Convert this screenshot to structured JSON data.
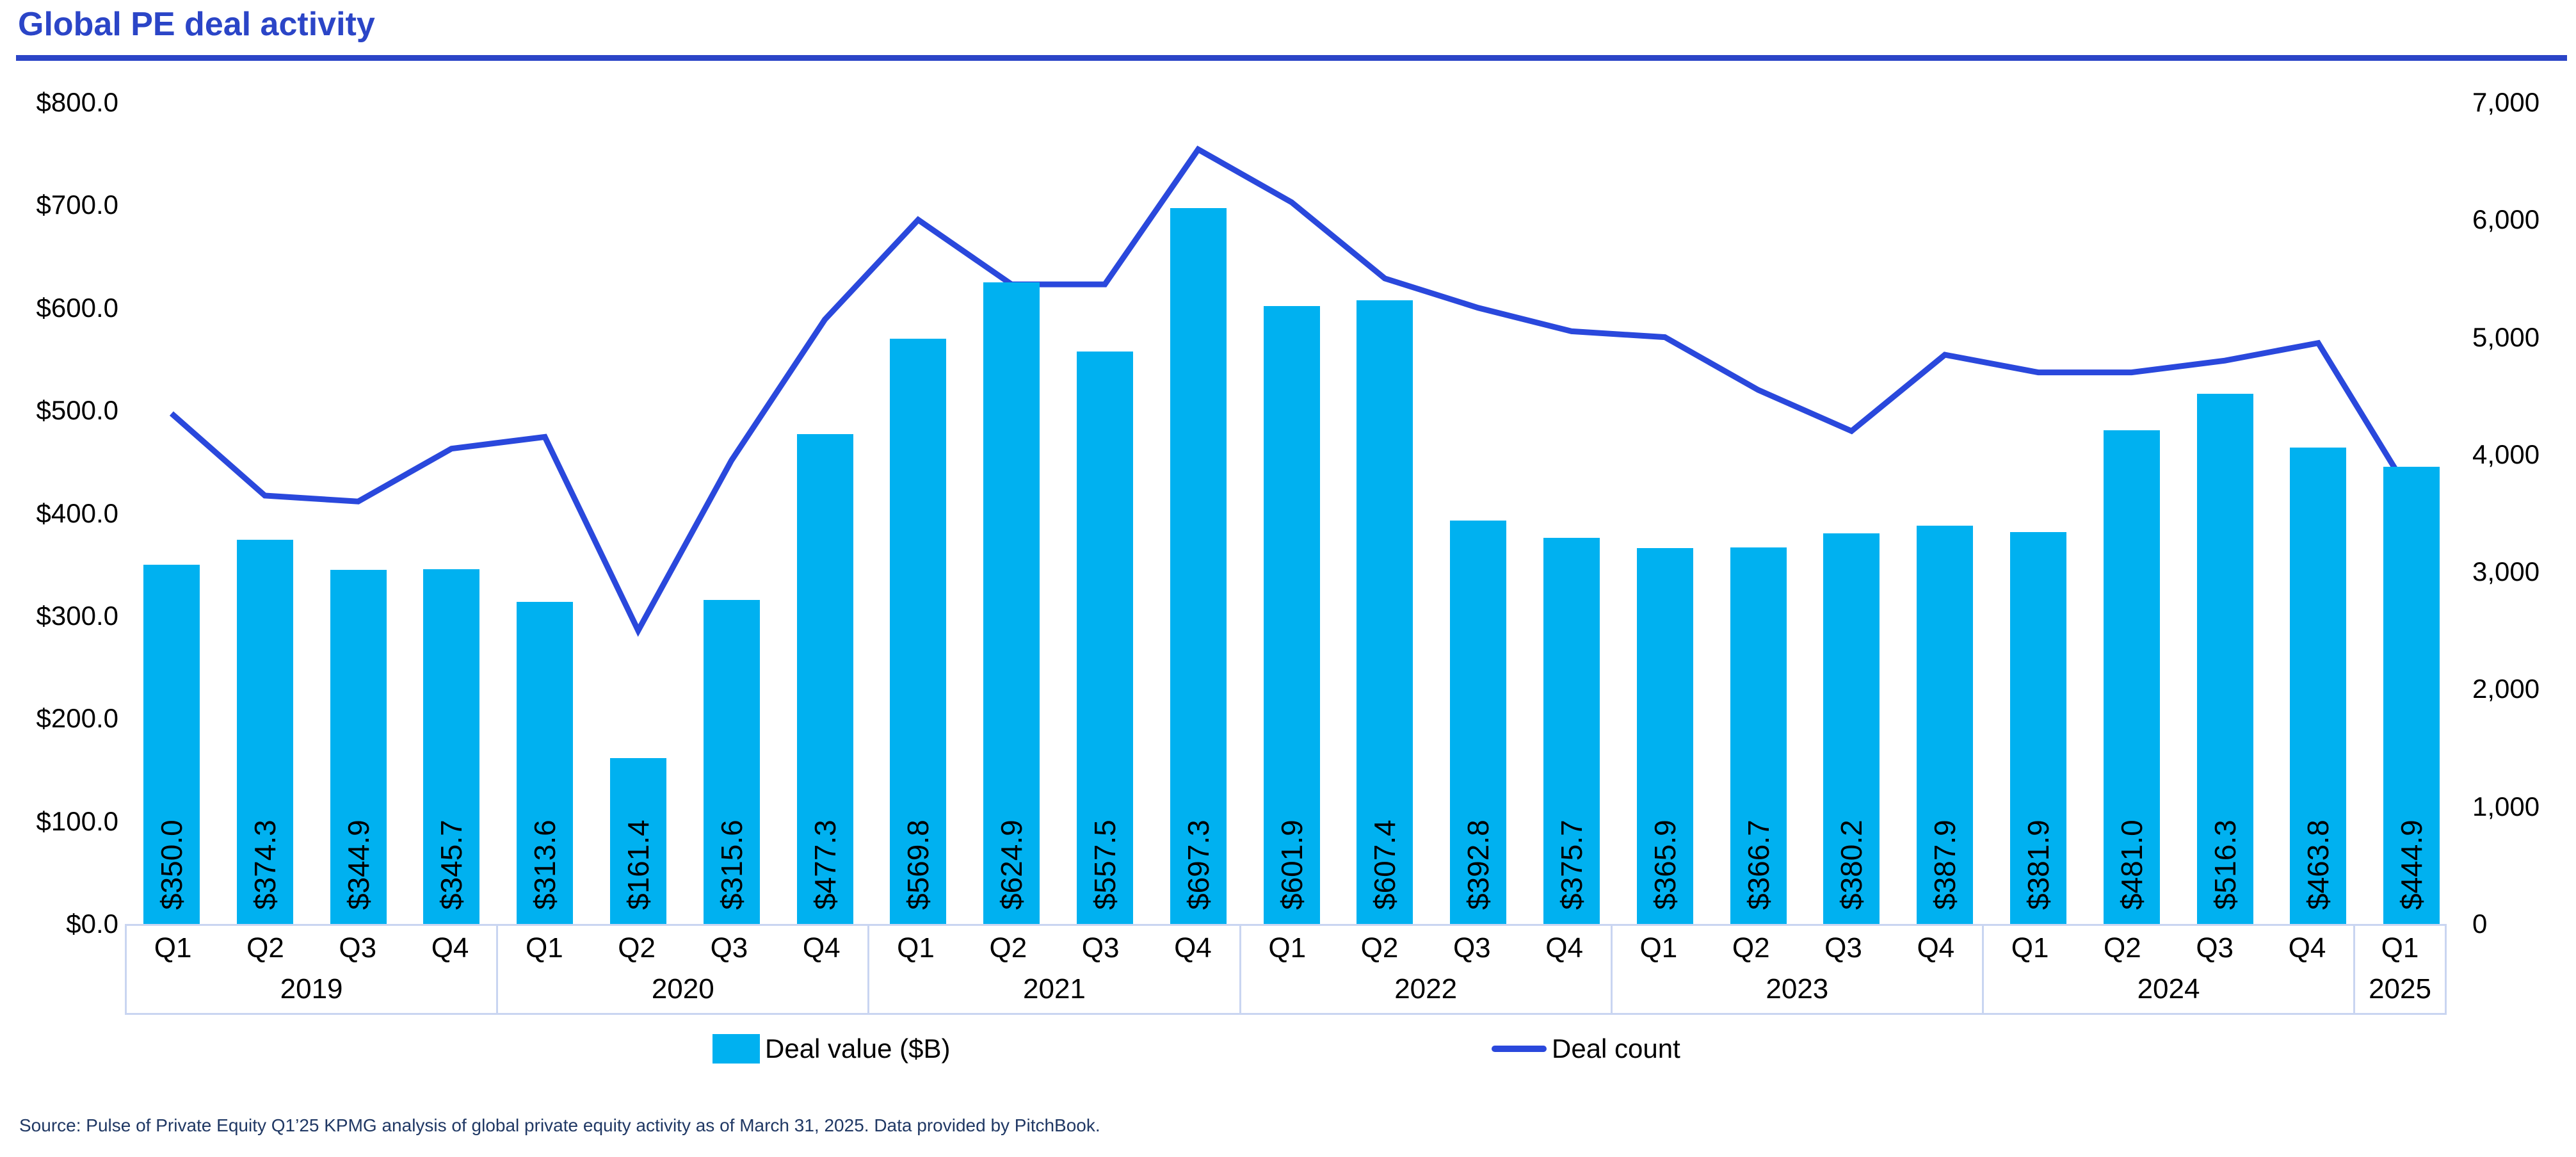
{
  "title": "Global PE deal activity",
  "colors": {
    "accent_blue": "#2B45C7",
    "line_blue": "#2A48DC",
    "bar_cyan": "#00B1F0",
    "axis_border": "#C9D5F1",
    "text": "#000000",
    "source_text": "#203864"
  },
  "left_axis": {
    "ticks": [
      "$800.0",
      "$700.0",
      "$600.0",
      "$500.0",
      "$400.0",
      "$300.0",
      "$200.0",
      "$100.0",
      "$0.0"
    ]
  },
  "right_axis": {
    "ticks": [
      "7,000",
      "6,000",
      "5,000",
      "4,000",
      "3,000",
      "2,000",
      "1,000",
      "0"
    ]
  },
  "x_axis": {
    "groups": [
      {
        "year": "2019",
        "quarters": [
          "Q1",
          "Q2",
          "Q3",
          "Q4"
        ]
      },
      {
        "year": "2020",
        "quarters": [
          "Q1",
          "Q2",
          "Q3",
          "Q4"
        ]
      },
      {
        "year": "2021",
        "quarters": [
          "Q1",
          "Q2",
          "Q3",
          "Q4"
        ]
      },
      {
        "year": "2022",
        "quarters": [
          "Q1",
          "Q2",
          "Q3",
          "Q4"
        ]
      },
      {
        "year": "2023",
        "quarters": [
          "Q1",
          "Q2",
          "Q3",
          "Q4"
        ]
      },
      {
        "year": "2024",
        "quarters": [
          "Q1",
          "Q2",
          "Q3",
          "Q4"
        ]
      },
      {
        "year": "2025",
        "quarters": [
          "Q1"
        ]
      }
    ]
  },
  "legend": {
    "deal_value_label": "Deal value ($B)",
    "deal_count_label": "Deal count"
  },
  "source": "Source: Pulse of Private Equity Q1’25 KPMG analysis of global private equity activity as of March 31, 2025. Data provided by PitchBook.",
  "chart_data": {
    "type": "bar",
    "x": [
      "Q1 2019",
      "Q2 2019",
      "Q3 2019",
      "Q4 2019",
      "Q1 2020",
      "Q2 2020",
      "Q3 2020",
      "Q4 2020",
      "Q1 2021",
      "Q2 2021",
      "Q3 2021",
      "Q4 2021",
      "Q1 2022",
      "Q2 2022",
      "Q3 2022",
      "Q4 2022",
      "Q1 2023",
      "Q2 2023",
      "Q3 2023",
      "Q4 2023",
      "Q1 2024",
      "Q2 2024",
      "Q3 2024",
      "Q4 2024",
      "Q1 2025"
    ],
    "series": [
      {
        "name": "Deal value ($B)",
        "type": "bar",
        "axis": "left",
        "values": [
          350.0,
          374.3,
          344.9,
          345.7,
          313.6,
          161.4,
          315.6,
          477.3,
          569.8,
          624.9,
          557.5,
          697.3,
          601.9,
          607.4,
          392.8,
          375.7,
          365.9,
          366.7,
          380.2,
          387.9,
          381.9,
          481.0,
          516.3,
          463.8,
          444.9
        ],
        "labels": [
          "$350.0",
          "$374.3",
          "$344.9",
          "$345.7",
          "$313.6",
          "$161.4",
          "$315.6",
          "$477.3",
          "$569.8",
          "$624.9",
          "$557.5",
          "$697.3",
          "$601.9",
          "$607.4",
          "$392.8",
          "$375.7",
          "$365.9",
          "$366.7",
          "$380.2",
          "$387.9",
          "$381.9",
          "$481.0",
          "$516.3",
          "$463.8",
          "$444.9"
        ]
      },
      {
        "name": "Deal count",
        "type": "line",
        "axis": "right",
        "values": [
          4350,
          3650,
          3600,
          4050,
          4150,
          2500,
          3950,
          5150,
          6000,
          5450,
          5450,
          6600,
          6150,
          5500,
          5250,
          5050,
          5000,
          4550,
          4200,
          4850,
          4700,
          4700,
          4800,
          4950,
          3650
        ]
      }
    ],
    "left_ylim": [
      0,
      800
    ],
    "right_ylim": [
      0,
      7000
    ],
    "grid": false,
    "legend_position": "bottom"
  }
}
